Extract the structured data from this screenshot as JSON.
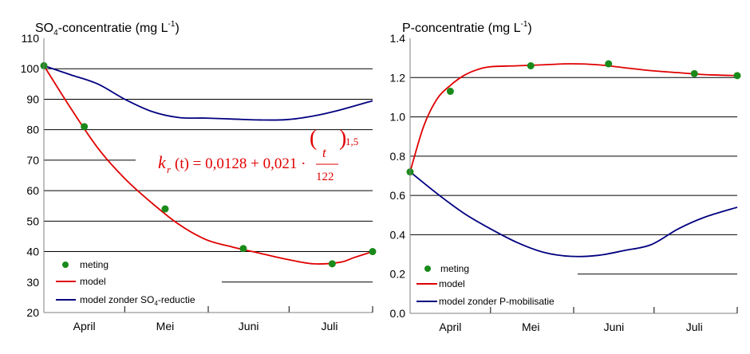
{
  "chart_data": [
    {
      "type": "line",
      "title_main": "SO",
      "title_sub": "4",
      "title_rest": "-concentratie (mg L",
      "title_sup": "-1",
      "title_end": ")",
      "ylim": [
        20,
        110
      ],
      "yticks": [
        "20",
        "30",
        "40",
        "50",
        "60",
        "70",
        "80",
        "90",
        "100",
        "110"
      ],
      "xlim": [
        0,
        122
      ],
      "month_labels": [
        {
          "label": "April",
          "x": 15
        },
        {
          "label": "Mei",
          "x": 45
        },
        {
          "label": "Juni",
          "x": 76
        },
        {
          "label": "Juli",
          "x": 106
        }
      ],
      "month_boundaries": [
        30,
        61,
        91
      ],
      "series": [
        {
          "name": "meting",
          "kind": "points",
          "color": "#1a8a1a",
          "x": [
            0,
            15,
            45,
            74,
            107,
            122
          ],
          "y": [
            101,
            81,
            54,
            41,
            36,
            40
          ]
        },
        {
          "name": "model",
          "kind": "line",
          "color": "#e00000",
          "x": [
            0,
            10,
            20,
            30,
            40,
            50,
            60,
            70,
            80,
            90,
            100,
            110,
            115,
            122
          ],
          "y": [
            101,
            87,
            74,
            64,
            56,
            49,
            44,
            41.5,
            39.5,
            37.5,
            36,
            36.5,
            38,
            40
          ]
        },
        {
          "name": "model zonder SO4-reductie",
          "kind": "line",
          "color": "#000080",
          "x": [
            0,
            10,
            20,
            30,
            40,
            50,
            60,
            70,
            80,
            90,
            100,
            110,
            122
          ],
          "y": [
            101,
            98,
            95,
            90,
            86,
            84,
            83.8,
            83.5,
            83.2,
            83.3,
            84.5,
            86.5,
            89.5
          ]
        }
      ],
      "legend": {
        "meting": "meting",
        "model": "model",
        "zonder_pre": "model zonder SO",
        "zonder_sub": "4",
        "zonder_post": "-reductie"
      },
      "formula": {
        "k": "k",
        "k_sub": "r",
        "lhs": "(t) = 0,0128 + 0,021 ·",
        "num": "t",
        "den": "122",
        "exp": "1,5"
      }
    },
    {
      "type": "line",
      "title_main": "P-concentratie (mg L",
      "title_sup": "-1",
      "title_end": ")",
      "ylim": [
        0.0,
        1.4
      ],
      "yticks": [
        "0.0",
        "0.2",
        "0.4",
        "0.6",
        "0.8",
        "1.0",
        "1.2",
        "1.4"
      ],
      "xlim": [
        0,
        122
      ],
      "month_labels": [
        {
          "label": "April",
          "x": 15
        },
        {
          "label": "Mei",
          "x": 45
        },
        {
          "label": "Juni",
          "x": 76
        },
        {
          "label": "Juli",
          "x": 106
        }
      ],
      "month_boundaries": [
        30,
        61,
        91
      ],
      "series": [
        {
          "name": "meting",
          "kind": "points",
          "color": "#1a8a1a",
          "x": [
            0,
            15,
            45,
            74,
            106,
            122
          ],
          "y": [
            0.72,
            1.13,
            1.26,
            1.27,
            1.22,
            1.21
          ]
        },
        {
          "name": "model",
          "kind": "line",
          "color": "#e00000",
          "x": [
            0,
            5,
            10,
            15,
            20,
            25,
            30,
            40,
            50,
            60,
            70,
            80,
            90,
            100,
            110,
            122
          ],
          "y": [
            0.72,
            0.95,
            1.09,
            1.16,
            1.21,
            1.24,
            1.255,
            1.26,
            1.265,
            1.27,
            1.265,
            1.25,
            1.235,
            1.225,
            1.215,
            1.21
          ]
        },
        {
          "name": "model zonder P-mobilisatie",
          "kind": "line",
          "color": "#000080",
          "x": [
            0,
            10,
            20,
            30,
            40,
            50,
            60,
            70,
            80,
            90,
            100,
            110,
            122
          ],
          "y": [
            0.72,
            0.61,
            0.51,
            0.43,
            0.36,
            0.31,
            0.29,
            0.295,
            0.32,
            0.35,
            0.43,
            0.49,
            0.54
          ]
        }
      ],
      "legend": {
        "meting": "meting",
        "model": "model",
        "zonder": "model zonder P-mobilisatie"
      }
    }
  ]
}
